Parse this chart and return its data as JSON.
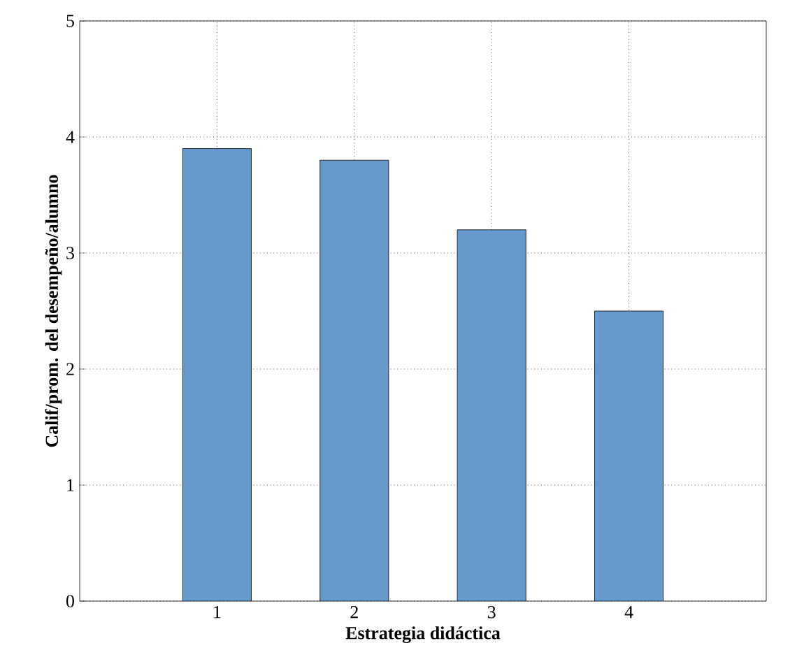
{
  "chart_data": {
    "type": "bar",
    "xlabel": "Estrategia didáctica",
    "ylabel": "Calif/prom. del desempeño/alumno",
    "x": [
      1,
      2,
      3,
      4
    ],
    "values": [
      3.9,
      3.8,
      3.2,
      2.5
    ],
    "color": "#6699cc",
    "xlim": [
      0,
      5
    ],
    "xticks": [
      1,
      2,
      3,
      4
    ],
    "ylim": [
      0,
      5
    ],
    "yticks": [
      0,
      1,
      2,
      3,
      4,
      5
    ],
    "grid": true
  }
}
